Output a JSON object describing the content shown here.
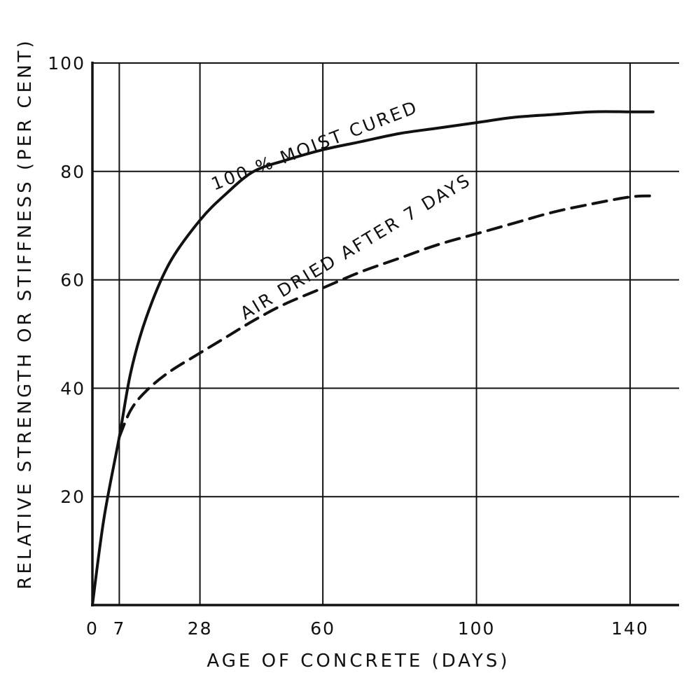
{
  "chart_data": {
    "type": "line",
    "xlabel": "AGE OF CONCRETE   (DAYS)",
    "ylabel": "RELATIVE STRENGTH OR STIFFNESS (PER CENT)",
    "xlim": [
      0,
      148
    ],
    "ylim": [
      0,
      100
    ],
    "x_ticks": [
      0,
      7,
      28,
      60,
      100,
      140
    ],
    "x_tick_labels": [
      "0",
      "7",
      "28",
      "60",
      "100",
      "140"
    ],
    "y_ticks": [
      20,
      40,
      60,
      80,
      100
    ],
    "y_tick_labels": [
      "20",
      "40",
      "60",
      "80",
      "100"
    ],
    "grid": true,
    "series": [
      {
        "name": "100 % MOIST CURED",
        "style": "solid",
        "color": "#111111",
        "x": [
          0,
          3,
          7,
          10,
          14,
          20,
          28,
          35,
          42,
          50,
          60,
          70,
          80,
          90,
          100,
          110,
          120,
          130,
          140,
          146
        ],
        "y": [
          0,
          16,
          31,
          43,
          53,
          63,
          71,
          76,
          80,
          82,
          84,
          85.5,
          87,
          88,
          89,
          90,
          90.5,
          91,
          91,
          91
        ]
      },
      {
        "name": "AIR DRIED AFTER 7 DAYS",
        "style": "dashed",
        "color": "#111111",
        "x": [
          7,
          10,
          14,
          20,
          28,
          35,
          42,
          50,
          60,
          70,
          80,
          90,
          100,
          110,
          120,
          130,
          140,
          146
        ],
        "y": [
          31,
          36,
          39.5,
          43,
          46.5,
          49.5,
          52.5,
          55.5,
          58.5,
          61.5,
          64,
          66.5,
          68.5,
          70.5,
          72.5,
          74,
          75.3,
          75.5
        ]
      }
    ],
    "annotations": [
      {
        "text": "100 %  MOIST CURED",
        "series": 0
      },
      {
        "text": "AIR DRIED AFTER 7 DAYS",
        "series": 1
      }
    ]
  }
}
